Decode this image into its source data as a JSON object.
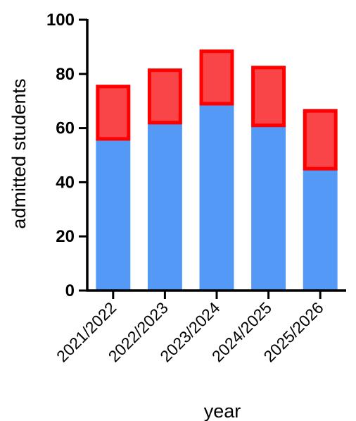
{
  "chart_data": {
    "type": "bar",
    "stacked": true,
    "title": "",
    "xlabel": "year",
    "ylabel": "admitted students",
    "categories": [
      "2021/2022",
      "2022/2023",
      "2023/2024",
      "2024/2025",
      "2025/2026"
    ],
    "series": [
      {
        "values": [
          56,
          62,
          69,
          61,
          45
        ],
        "color": "#5599f7"
      },
      {
        "values": [
          20,
          20,
          20,
          22,
          22
        ],
        "color": "#f94448",
        "stroke": "#ff0000"
      }
    ],
    "ylim": [
      0,
      100
    ],
    "yticks": [
      0,
      20,
      40,
      60,
      80,
      100
    ],
    "grid": false,
    "legend": "none"
  }
}
